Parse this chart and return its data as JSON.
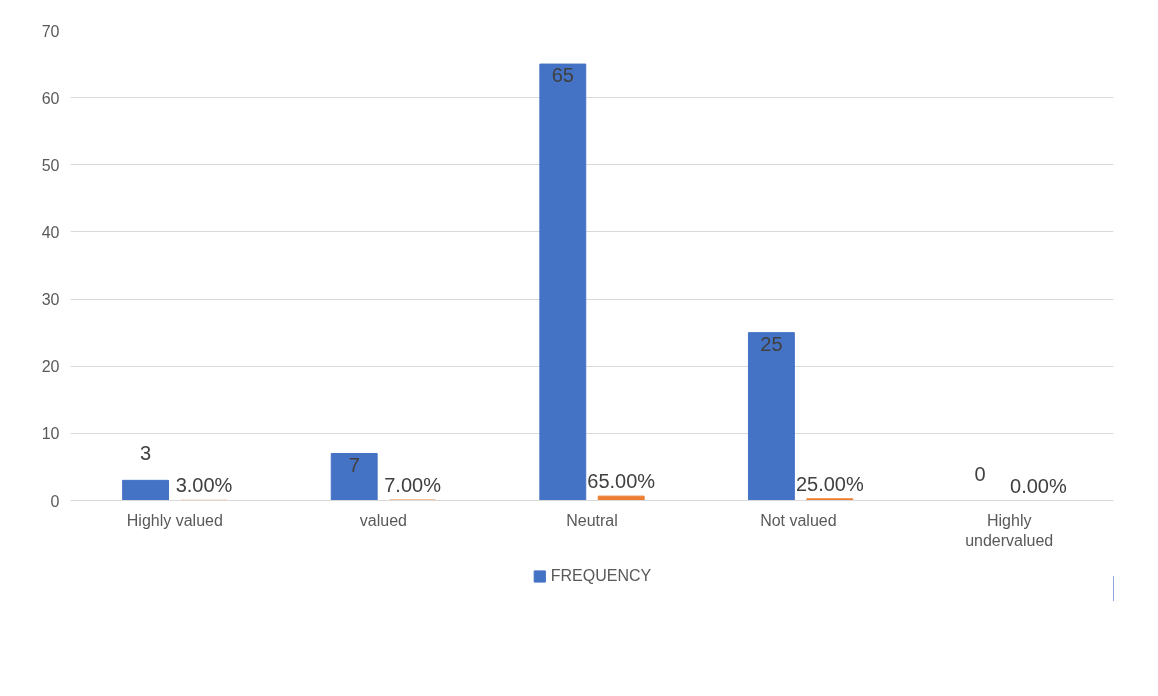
{
  "chart_data": {
    "type": "bar",
    "categories": [
      "Highly valued",
      "valued",
      "Neutral",
      "Not  valued",
      "Highly undervalued"
    ],
    "series": [
      {
        "name": "FREQUENCY",
        "color": "#4472c4",
        "values": [
          3,
          7,
          65,
          25,
          0
        ],
        "data_labels": true
      },
      {
        "color": "#ed7d31",
        "values": [
          0.03,
          0.07,
          0.65,
          0.25,
          0
        ],
        "value_labels": [
          "3.00%",
          "7.00%",
          "65.00%",
          "25.00%",
          "0.00%"
        ]
      }
    ],
    "ylim": [
      0,
      70
    ],
    "yticks": [
      0,
      10,
      20,
      30,
      40,
      50,
      60,
      70
    ],
    "grid": "y",
    "legend": "bottom"
  }
}
